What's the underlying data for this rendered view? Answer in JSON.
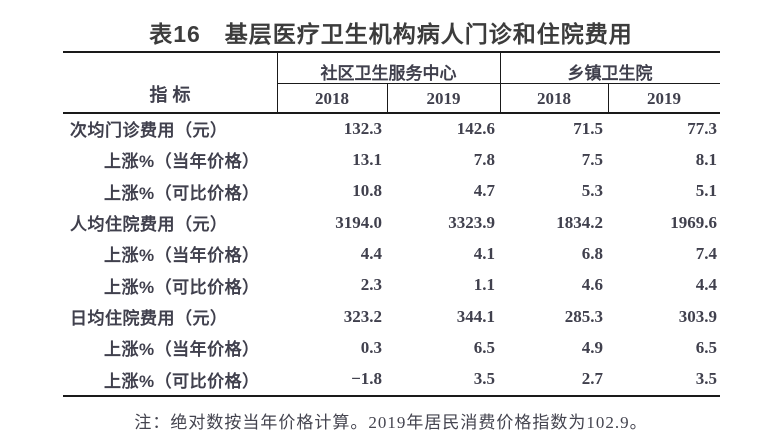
{
  "title": "表16　基层医疗卫生机构病人门诊和住院费用",
  "table": {
    "stub_header": "指  标",
    "col_groups": [
      {
        "label": "社区卫生服务中心",
        "years": [
          "2018",
          "2019"
        ]
      },
      {
        "label": "乡镇卫生院",
        "years": [
          "2018",
          "2019"
        ]
      }
    ],
    "rows": [
      {
        "label": "次均门诊费用（元）",
        "values": [
          "132.3",
          "142.6",
          "71.5",
          "77.3"
        ]
      },
      {
        "label": "上涨%（当年价格）",
        "values": [
          "13.1",
          "7.8",
          "7.5",
          "8.1"
        ]
      },
      {
        "label": "上涨%（可比价格）",
        "values": [
          "10.8",
          "4.7",
          "5.3",
          "5.1"
        ]
      },
      {
        "label": "人均住院费用（元）",
        "values": [
          "3194.0",
          "3323.9",
          "1834.2",
          "1969.6"
        ]
      },
      {
        "label": "上涨%（当年价格）",
        "values": [
          "4.4",
          "4.1",
          "6.8",
          "7.4"
        ]
      },
      {
        "label": "上涨%（可比价格）",
        "values": [
          "2.3",
          "1.1",
          "4.6",
          "4.4"
        ]
      },
      {
        "label": "日均住院费用（元）",
        "values": [
          "323.2",
          "344.1",
          "285.3",
          "303.9"
        ]
      },
      {
        "label": "上涨%（当年价格）",
        "values": [
          "0.3",
          "6.5",
          "4.9",
          "6.5"
        ]
      },
      {
        "label": "上涨%（可比价格）",
        "values": [
          "−1.8",
          "3.5",
          "2.7",
          "3.5"
        ]
      }
    ]
  },
  "footnote": "注：绝对数按当年价格计算。2019年居民消费价格指数为102.9。",
  "colors": {
    "background": "#ffffff",
    "border": "#1a1a1a",
    "title_text": "#3c3c3c",
    "table_text": "#40404d"
  },
  "chart_data": {
    "type": "table",
    "title": "表16 基层医疗卫生机构病人门诊和住院费用",
    "columns": [
      "指标",
      "社区卫生服务中心 2018",
      "社区卫生服务中心 2019",
      "乡镇卫生院 2018",
      "乡镇卫生院 2019"
    ],
    "rows": [
      [
        "次均门诊费用（元）",
        132.3,
        142.6,
        71.5,
        77.3
      ],
      [
        "上涨%（当年价格）",
        13.1,
        7.8,
        7.5,
        8.1
      ],
      [
        "上涨%（可比价格）",
        10.8,
        4.7,
        5.3,
        5.1
      ],
      [
        "人均住院费用（元）",
        3194.0,
        3323.9,
        1834.2,
        1969.6
      ],
      [
        "上涨%（当年价格）",
        4.4,
        4.1,
        6.8,
        7.4
      ],
      [
        "上涨%（可比价格）",
        2.3,
        1.1,
        4.6,
        4.4
      ],
      [
        "日均住院费用（元）",
        323.2,
        344.1,
        285.3,
        303.9
      ],
      [
        "上涨%（当年价格）",
        0.3,
        6.5,
        4.9,
        6.5
      ],
      [
        "上涨%（可比价格）",
        -1.8,
        3.5,
        2.7,
        3.5
      ]
    ],
    "footnote": "注：绝对数按当年价格计算。2019年居民消费价格指数为102.9。"
  }
}
